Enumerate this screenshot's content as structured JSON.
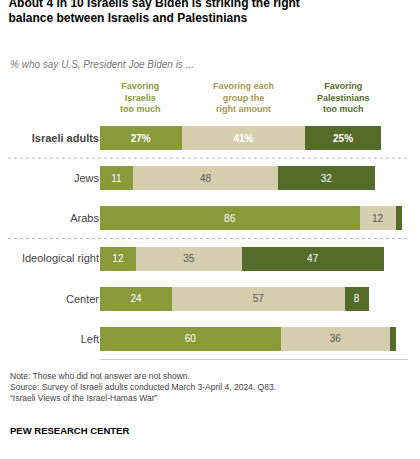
{
  "chart_data": {
    "type": "bar",
    "orientation": "horizontal",
    "stacked": true,
    "title": "About 4 in 10 Israelis say Biden is striking the right\nbalance between Israelis and Palestinians",
    "subtitle": "% who say U.S. President Joe Biden is ...",
    "categories": [
      "Israeli adults",
      "Jews",
      "Arabs",
      "Ideological right",
      "Center",
      "Left"
    ],
    "series": [
      {
        "name": "Favoring\nIsraelis\ntoo much",
        "color": "#8a9a3a",
        "values": [
          27,
          11,
          86,
          12,
          24,
          60
        ],
        "value_labels": [
          "27%",
          "11",
          "86",
          "12",
          "24",
          "60"
        ]
      },
      {
        "name": "Favoring each\ngroup the\nright amount",
        "color": "#d5cfb0",
        "values": [
          41,
          48,
          12,
          35,
          57,
          36
        ],
        "value_labels": [
          "41%",
          "48",
          "12",
          "35",
          "57",
          "36"
        ]
      },
      {
        "name": "Favoring\nPalestinians\ntoo much",
        "color": "#556b2a",
        "values": [
          25,
          32,
          2,
          47,
          8,
          2
        ],
        "value_labels": [
          "25%",
          "32",
          null,
          "47",
          "8",
          null
        ]
      }
    ],
    "xlim": [
      0,
      102
    ],
    "data_labels": true,
    "tick_labels": "y",
    "grid": false,
    "annotations": [
      "Note: Those who did not answer are not shown.\nSource: Survey of Israeli adults conducted March 3-April 4, 2024. Q83.\n“Israeli Views of the Israel-Hamas War”",
      "PEW RESEARCH CENTER"
    ]
  }
}
